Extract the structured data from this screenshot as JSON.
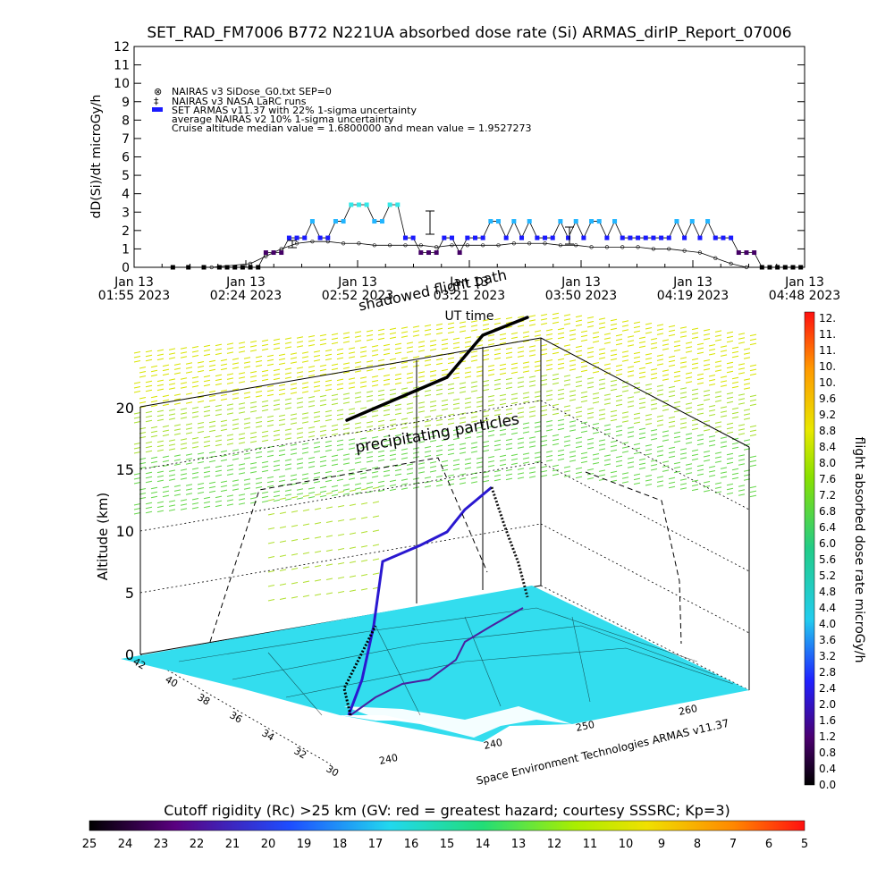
{
  "top_chart": {
    "title": "SET_RAD_FM7006  B772 N221UA absorbed dose rate (Si) ARMAS_dirIP_Report_07006",
    "ylabel": "dD(Si)/dt microGy/h",
    "xlabel": "UT time",
    "legend": {
      "line1": "NAIRAS v3 SiDose_G0.txt SEP=0",
      "line2": "NAIRAS v3 NASA LaRC runs",
      "line3": "SET ARMAS v11.37 with 22% 1-sigma uncertainty",
      "line4": "average NAIRAS v2 10% 1-sigma uncertainty",
      "line5": "Cruise altitude median value = 1.6800000 and mean value = 1.9527273"
    },
    "ytick_labels": [
      "0",
      "1",
      "2",
      "3",
      "4",
      "5",
      "6",
      "7",
      "8",
      "9",
      "10",
      "11",
      "12"
    ],
    "xticks": [
      {
        "top": "Jan 13",
        "bottom": "01:55 2023"
      },
      {
        "top": "Jan 13",
        "bottom": "02:24 2023"
      },
      {
        "top": "Jan 13",
        "bottom": "02:52 2023"
      },
      {
        "top": "Jan 13",
        "bottom": "03:21 2023"
      },
      {
        "top": "Jan 13",
        "bottom": "03:50 2023"
      },
      {
        "top": "Jan 13",
        "bottom": "04:19 2023"
      },
      {
        "top": "Jan 13",
        "bottom": "04:48 2023"
      }
    ],
    "colors": {
      "armas": "#1a1aff",
      "armas_high": "#22b5ff",
      "armas_peak": "#33e8e8",
      "armas_low": "#440066",
      "nairas": "#000000"
    }
  },
  "chart_data": [
    {
      "type": "scatter",
      "title": "SET_RAD_FM7006  B772 N221UA absorbed dose rate (Si) ARMAS_dirIP_Report_07006",
      "xlabel": "UT time",
      "ylabel": "dD(Si)/dt microGy/h",
      "x_range_minutes_after_0155": [
        0,
        173
      ],
      "ylim": [
        0,
        12
      ],
      "x_unit": "minutes after Jan 13 01:55 2023",
      "series": [
        {
          "name": "SET ARMAS v11.37 with 22% 1-sigma uncertainty",
          "x": [
            10,
            14,
            18,
            22,
            24,
            26,
            28,
            30,
            32,
            34,
            36,
            38,
            40,
            42,
            44,
            46,
            48,
            50,
            52,
            54,
            56,
            58,
            60,
            62,
            64,
            66,
            68,
            70,
            72,
            74,
            76,
            78,
            80,
            82,
            84,
            86,
            88,
            90,
            92,
            94,
            96,
            98,
            100,
            102,
            104,
            106,
            108,
            110,
            112,
            114,
            116,
            118,
            120,
            122,
            124,
            126,
            128,
            130,
            132,
            134,
            136,
            138,
            140,
            142,
            144,
            146,
            148,
            150,
            152,
            154,
            156,
            158,
            160,
            162,
            164,
            166,
            168,
            170,
            172
          ],
          "y": [
            0,
            0,
            0,
            0,
            0,
            0,
            0,
            0,
            0,
            0.8,
            0.8,
            0.8,
            1.6,
            1.6,
            1.6,
            2.5,
            1.6,
            1.6,
            2.5,
            2.5,
            3.4,
            3.4,
            3.4,
            2.5,
            2.5,
            3.4,
            3.4,
            1.6,
            1.6,
            0.8,
            0.8,
            0.8,
            1.6,
            1.6,
            0.8,
            1.6,
            1.6,
            1.6,
            2.5,
            2.5,
            1.6,
            2.5,
            1.6,
            2.5,
            1.6,
            1.6,
            1.6,
            2.5,
            1.6,
            2.5,
            1.6,
            2.5,
            2.5,
            1.6,
            2.5,
            1.6,
            1.6,
            1.6,
            1.6,
            1.6,
            1.6,
            1.6,
            2.5,
            1.6,
            2.5,
            1.6,
            2.5,
            1.6,
            1.6,
            1.6,
            0.8,
            0.8,
            0.8,
            0,
            0,
            0,
            0,
            0,
            0
          ]
        },
        {
          "name": "NAIRAS v3 SiDose_G0.txt SEP=0",
          "x": [
            10,
            20,
            30,
            34,
            38,
            42,
            46,
            50,
            54,
            58,
            62,
            66,
            70,
            74,
            78,
            82,
            86,
            90,
            94,
            98,
            102,
            106,
            110,
            114,
            118,
            122,
            126,
            130,
            134,
            138,
            142,
            146,
            150,
            154,
            158,
            162,
            166,
            170
          ],
          "y": [
            0,
            0,
            0.2,
            0.6,
            1.0,
            1.3,
            1.4,
            1.4,
            1.3,
            1.3,
            1.2,
            1.2,
            1.2,
            1.2,
            1.1,
            1.2,
            1.2,
            1.2,
            1.2,
            1.3,
            1.3,
            1.3,
            1.2,
            1.2,
            1.1,
            1.1,
            1.1,
            1.1,
            1.0,
            1.0,
            0.9,
            0.8,
            0.5,
            0.2,
            0,
            0,
            0,
            0
          ]
        }
      ]
    },
    {
      "type": "scatter",
      "subtype": "3d-trajectory",
      "zlabel": "Altitude (km)",
      "zlim": [
        0,
        20
      ],
      "y_tick_labels": [
        "42",
        "40",
        "38",
        "36",
        "34",
        "32",
        "30"
      ],
      "x_tick_labels": [
        "240",
        "240",
        "250",
        "260"
      ],
      "annotations": [
        "precipitating particles",
        "shadowed flight path"
      ],
      "credit": "Space Environment Technologies ARMAS v11.37",
      "series": [
        {
          "name": "flight path"
        }
      ]
    }
  ],
  "colorbar_right": {
    "label": "flight absorbed dose rate microGy/h",
    "labels": [
      "12.",
      "11.",
      "11.",
      "10.",
      "10.",
      "9.6",
      "9.2",
      "8.8",
      "8.4",
      "8.0",
      "7.6",
      "7.2",
      "6.8",
      "6.4",
      "6.0",
      "5.6",
      "5.2",
      "4.8",
      "4.4",
      "4.0",
      "3.6",
      "3.2",
      "2.8",
      "2.4",
      "2.0",
      "1.6",
      "1.2",
      "0.8",
      "0.4",
      "0.0"
    ]
  },
  "colorbar_bottom": {
    "title": "Cutoff rigidity (Rc) >25 km (GV: red = greatest hazard; courtesy SSSRC; Kp=3)",
    "labels": [
      "25",
      "24",
      "23",
      "22",
      "21",
      "20",
      "19",
      "18",
      "17",
      "16",
      "15",
      "14",
      "13",
      "12",
      "11",
      "10",
      "9",
      "8",
      "7",
      "6",
      "5"
    ]
  },
  "globe3d": {
    "zlabel": "Altitude (km)",
    "z_ticks": [
      "0",
      "5",
      "10",
      "15",
      "20"
    ],
    "lat_ticks": [
      "42",
      "40",
      "38",
      "36",
      "34",
      "32",
      "30"
    ],
    "lon_ticks": [
      "240",
      "240",
      "250",
      "260"
    ],
    "annotation_particles": "precipitating particles",
    "annotation_shadow": "shadowed flight path",
    "credit": "Space Environment Technologies ARMAS v11.37",
    "colors": {
      "map": "#33ddee",
      "field_yellow": "#e8e800",
      "field_green": "#88dd33"
    }
  }
}
